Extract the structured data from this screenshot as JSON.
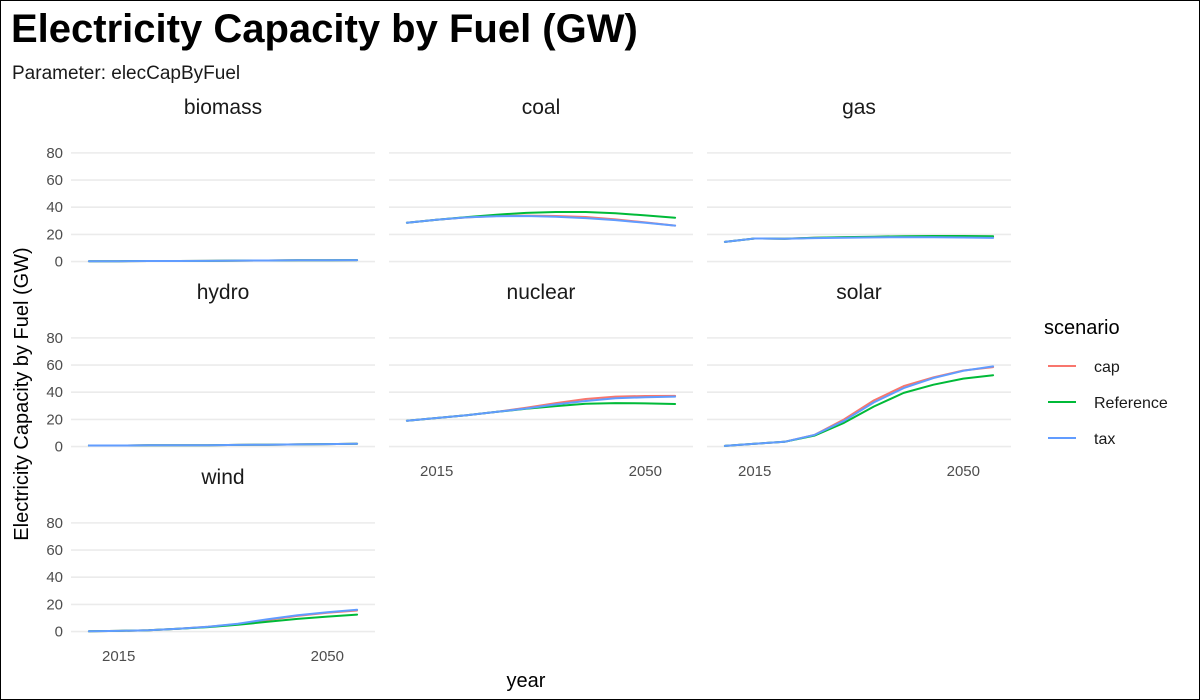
{
  "title": "Electricity Capacity by Fuel (GW)",
  "subtitle": "Parameter: elecCapByFuel",
  "chart_data": {
    "type": "line",
    "xlabel": "year",
    "ylabel": "Electricity Capacity by Fuel (GW)",
    "x": [
      2010,
      2015,
      2020,
      2025,
      2030,
      2035,
      2040,
      2045,
      2050,
      2055
    ],
    "x_ticks": [
      2015,
      2050
    ],
    "xlim": [
      2007,
      2058
    ],
    "y_ticks": [
      0,
      20,
      40,
      60,
      80
    ],
    "ylim": [
      -4,
      88
    ],
    "grid": true,
    "legend": {
      "title": "scenario",
      "position": "right",
      "entries": [
        {
          "name": "cap",
          "color": "#F8766D"
        },
        {
          "name": "Reference",
          "color": "#00BA38"
        },
        {
          "name": "tax",
          "color": "#619CFF"
        }
      ]
    },
    "facets": [
      {
        "name": "biomass",
        "series": [
          {
            "name": "cap",
            "values": [
              0.3,
              0.3,
              0.4,
              0.4,
              0.5,
              0.7,
              0.8,
              0.9,
              1.0,
              1.1
            ]
          },
          {
            "name": "Reference",
            "values": [
              0.3,
              0.3,
              0.4,
              0.4,
              0.5,
              0.7,
              0.8,
              0.9,
              1.0,
              1.1
            ]
          },
          {
            "name": "tax",
            "values": [
              0.3,
              0.3,
              0.4,
              0.4,
              0.5,
              0.7,
              0.8,
              0.9,
              1.0,
              1.1
            ]
          }
        ]
      },
      {
        "name": "coal",
        "series": [
          {
            "name": "cap",
            "values": [
              28.5,
              30.8,
              32.5,
              33.5,
              33.8,
              33.5,
              32.8,
              31.0,
              28.8,
              26.5
            ]
          },
          {
            "name": "Reference",
            "values": [
              28.5,
              30.8,
              32.7,
              34.5,
              35.8,
              36.5,
              36.5,
              35.5,
              34.0,
              32.3
            ]
          },
          {
            "name": "tax",
            "values": [
              28.5,
              30.8,
              32.5,
              33.3,
              33.5,
              33.0,
              32.0,
              30.5,
              28.5,
              26.5
            ]
          }
        ]
      },
      {
        "name": "gas",
        "series": [
          {
            "name": "cap",
            "values": [
              14.5,
              17.0,
              16.8,
              17.5,
              17.8,
              18.0,
              18.2,
              18.2,
              18.0,
              17.8
            ]
          },
          {
            "name": "Reference",
            "values": [
              14.5,
              17.0,
              16.8,
              17.5,
              18.0,
              18.3,
              18.7,
              18.8,
              18.8,
              18.7
            ]
          },
          {
            "name": "tax",
            "values": [
              14.5,
              17.0,
              16.8,
              17.3,
              17.6,
              17.8,
              17.9,
              17.9,
              17.7,
              17.4
            ]
          }
        ]
      },
      {
        "name": "hydro",
        "series": [
          {
            "name": "cap",
            "values": [
              0.8,
              0.8,
              0.9,
              0.9,
              1.0,
              1.2,
              1.4,
              1.6,
              1.8,
              2.0
            ]
          },
          {
            "name": "Reference",
            "values": [
              0.8,
              0.8,
              0.9,
              0.9,
              1.0,
              1.2,
              1.4,
              1.6,
              1.8,
              2.0
            ]
          },
          {
            "name": "tax",
            "values": [
              0.8,
              0.8,
              0.9,
              0.9,
              1.0,
              1.2,
              1.4,
              1.6,
              1.8,
              2.0
            ]
          }
        ]
      },
      {
        "name": "nuclear",
        "series": [
          {
            "name": "cap",
            "values": [
              19.0,
              21.0,
              23.0,
              25.5,
              28.5,
              32.0,
              35.0,
              36.8,
              37.2,
              37.3
            ]
          },
          {
            "name": "Reference",
            "values": [
              19.0,
              21.0,
              23.0,
              25.5,
              27.8,
              29.8,
              31.5,
              32.0,
              31.8,
              31.3
            ]
          },
          {
            "name": "tax",
            "values": [
              19.0,
              21.0,
              23.0,
              25.5,
              28.0,
              31.0,
              33.5,
              35.5,
              36.3,
              36.8
            ]
          }
        ]
      },
      {
        "name": "solar",
        "series": [
          {
            "name": "cap",
            "values": [
              0.5,
              2.0,
              3.5,
              8.5,
              20.0,
              34.0,
              44.5,
              51.0,
              56.0,
              58.5
            ]
          },
          {
            "name": "Reference",
            "values": [
              0.5,
              2.0,
              3.5,
              8.0,
              17.5,
              29.5,
              39.5,
              45.5,
              50.0,
              52.5
            ]
          },
          {
            "name": "tax",
            "values": [
              0.5,
              2.0,
              3.5,
              8.5,
              19.0,
              32.5,
              43.0,
              50.5,
              55.8,
              59.0
            ]
          }
        ]
      },
      {
        "name": "wind",
        "series": [
          {
            "name": "cap",
            "values": [
              0.2,
              0.5,
              1.0,
              2.0,
              3.5,
              5.5,
              8.5,
              11.5,
              13.8,
              15.5
            ]
          },
          {
            "name": "Reference",
            "values": [
              0.2,
              0.5,
              1.0,
              2.0,
              3.3,
              5.0,
              7.2,
              9.3,
              11.0,
              12.5
            ]
          },
          {
            "name": "tax",
            "values": [
              0.2,
              0.5,
              1.0,
              2.0,
              3.5,
              5.8,
              9.0,
              12.0,
              14.2,
              16.0
            ]
          }
        ]
      }
    ]
  }
}
